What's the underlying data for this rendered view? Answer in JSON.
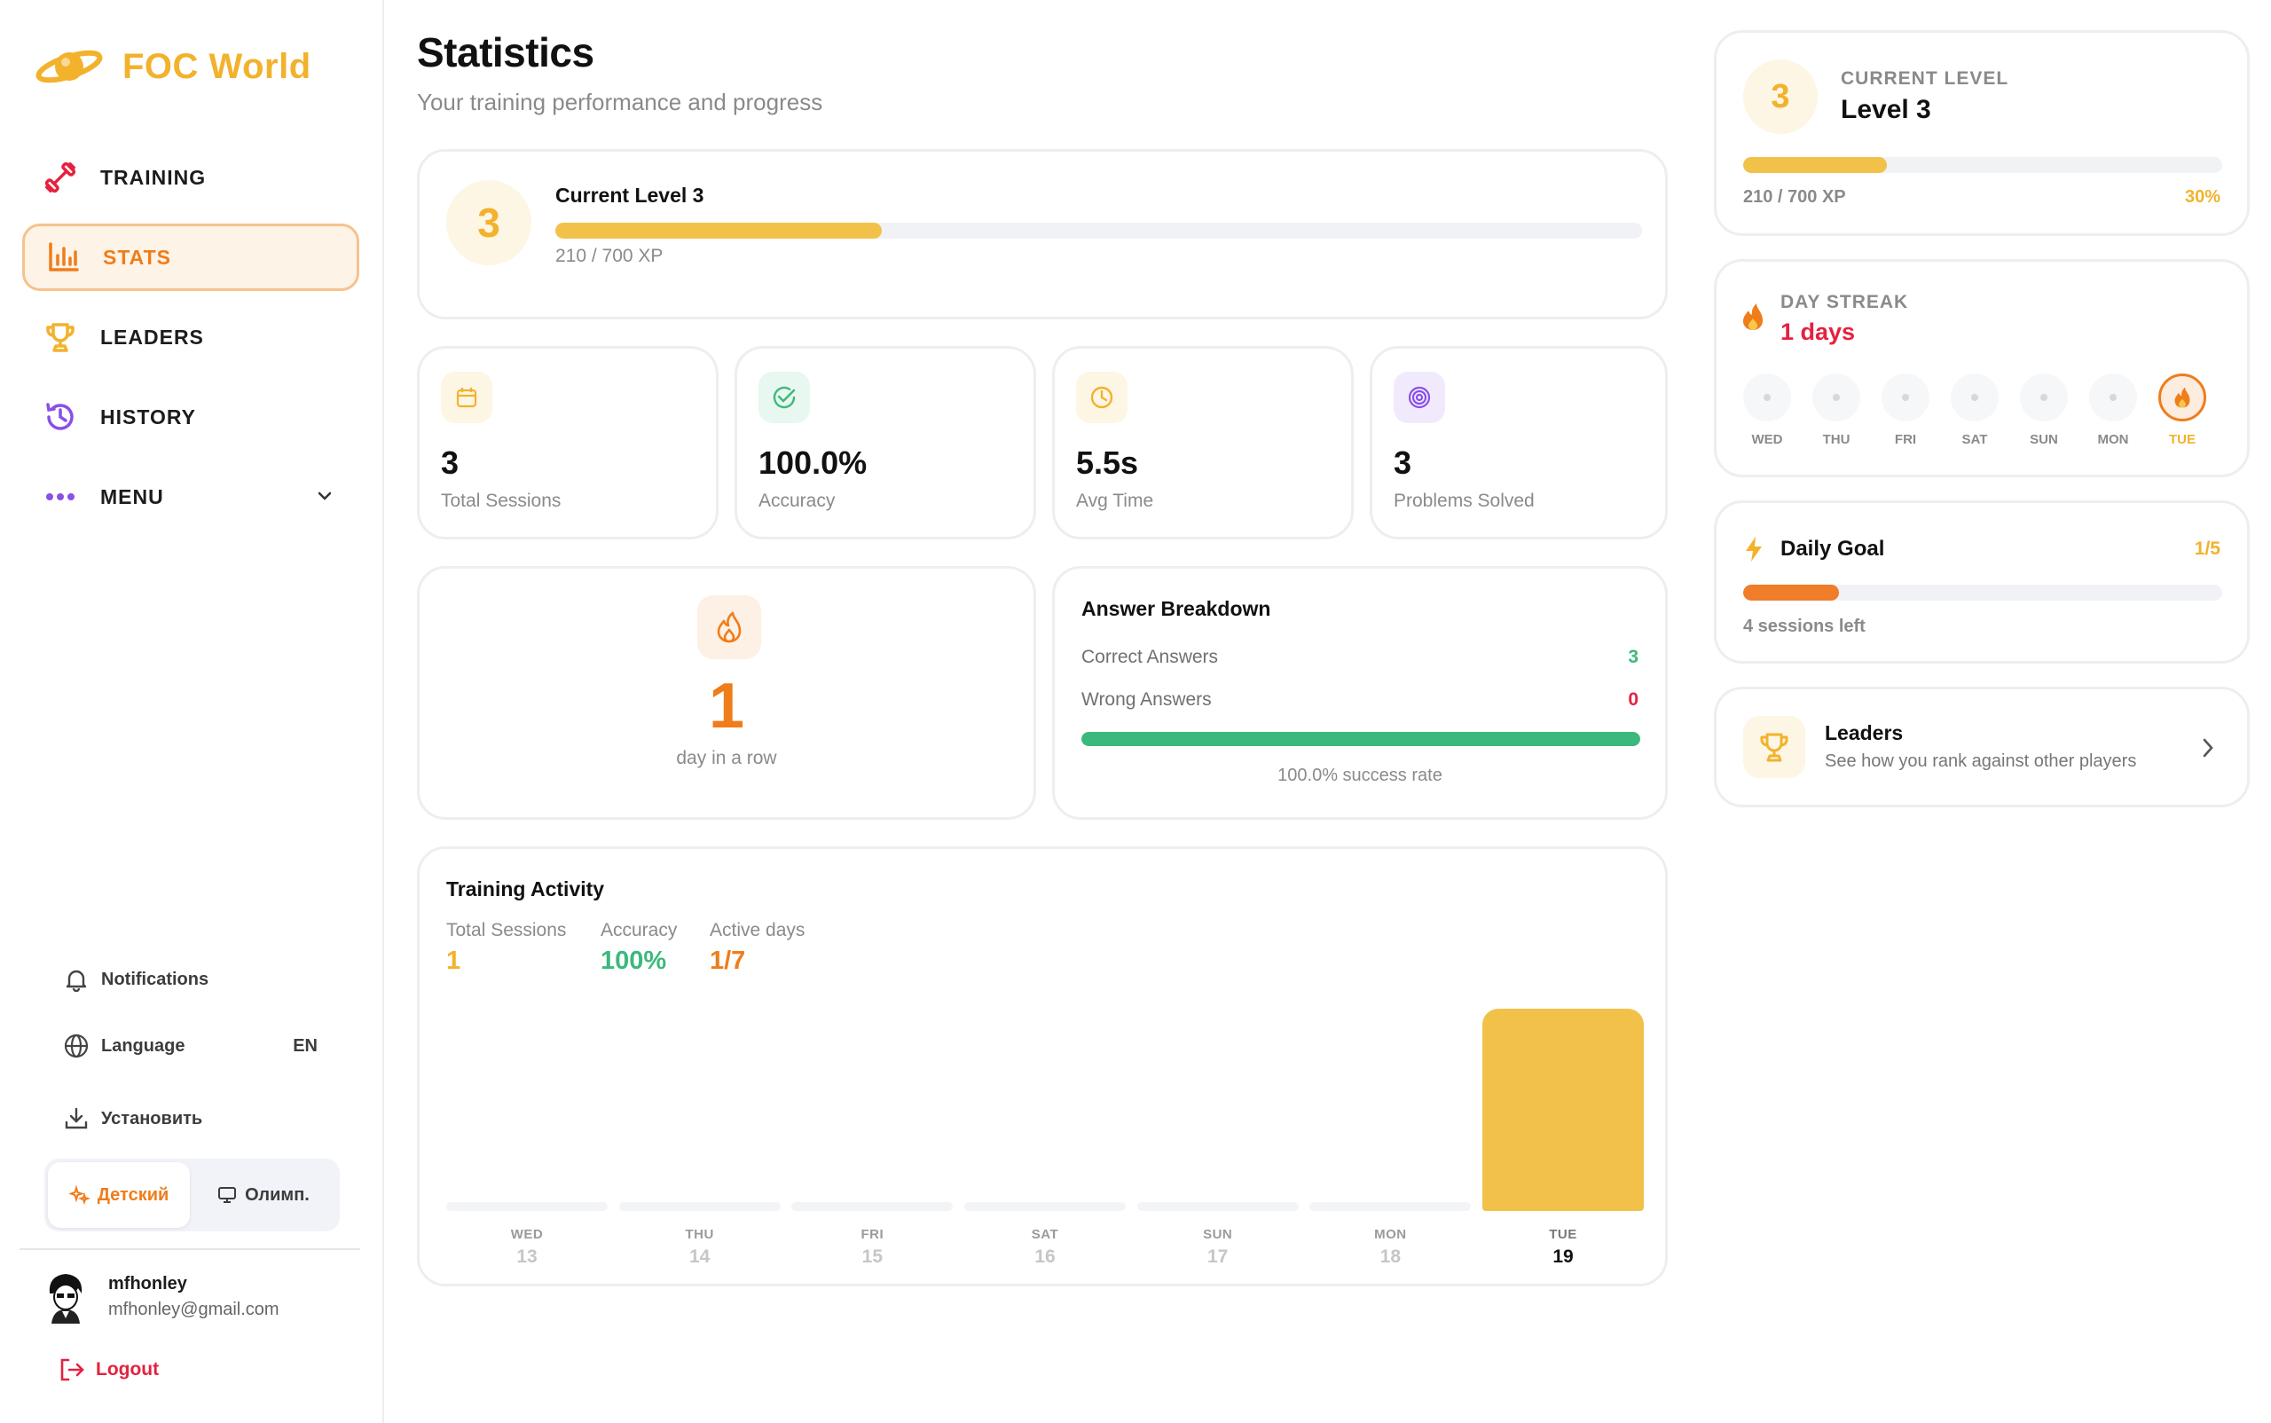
{
  "app": {
    "name": "FOC World"
  },
  "nav": {
    "training": "TRAINING",
    "stats": "STATS",
    "leaders": "LEADERS",
    "history": "HISTORY",
    "menu": "MENU"
  },
  "sidebar_utils": {
    "notifications": "Notifications",
    "language": "Language",
    "language_value": "EN",
    "install": "Установить"
  },
  "mode_switch": {
    "kids": "Детский",
    "olymp": "Олимп."
  },
  "user": {
    "name": "mfhonley",
    "email": "mfhonley@gmail.com"
  },
  "logout": "Logout",
  "page": {
    "title": "Statistics",
    "subtitle": "Your training performance and progress"
  },
  "level_card": {
    "level": "3",
    "title": "Current Level 3",
    "xp_text": "210 / 700 XP",
    "progress": 0.3
  },
  "stats": [
    {
      "value": "3",
      "label": "Total Sessions",
      "icon": "calendar-icon"
    },
    {
      "value": "100.0%",
      "label": "Accuracy",
      "icon": "check-circle-icon"
    },
    {
      "value": "5.5s",
      "label": "Avg Time",
      "icon": "clock-icon"
    },
    {
      "value": "3",
      "label": "Problems Solved",
      "icon": "target-icon"
    }
  ],
  "streak_card": {
    "value": "1",
    "label": "day in a row"
  },
  "breakdown": {
    "title": "Answer Breakdown",
    "correct_label": "Correct Answers",
    "correct_value": "3",
    "wrong_label": "Wrong Answers",
    "wrong_value": "0",
    "success_fraction": 1.0,
    "success_text": "100.0% success rate"
  },
  "activity": {
    "title": "Training Activity",
    "summary": [
      {
        "label": "Total Sessions",
        "value": "1",
        "color": "#f2b22c"
      },
      {
        "label": "Accuracy",
        "value": "100%",
        "color": "#3bb97c"
      },
      {
        "label": "Active days",
        "value": "1/7",
        "color": "#ef7d1a"
      }
    ]
  },
  "chart_data": {
    "type": "bar",
    "title": "Training Activity",
    "categories": [
      "WED",
      "THU",
      "FRI",
      "SAT",
      "SUN",
      "MON",
      "TUE"
    ],
    "dates": [
      "13",
      "14",
      "15",
      "16",
      "17",
      "18",
      "19"
    ],
    "values": [
      0,
      0,
      0,
      0,
      0,
      0,
      1
    ],
    "ylim": [
      0,
      1
    ],
    "highlight_index": 6,
    "bar_color": "#f2c14a",
    "track_color": "#f3f4f7",
    "grid": false,
    "legend": "none"
  },
  "right": {
    "current_level": {
      "caption": "CURRENT LEVEL",
      "level_badge": "3",
      "title": "Level 3",
      "xp_text": "210 / 700 XP",
      "percent_text": "30%",
      "progress": 0.3
    },
    "day_streak": {
      "caption": "DAY STREAK",
      "value": "1 days",
      "days": [
        "WED",
        "THU",
        "FRI",
        "SAT",
        "SUN",
        "MON",
        "TUE"
      ],
      "active": [
        false,
        false,
        false,
        false,
        false,
        false,
        true
      ]
    },
    "daily_goal": {
      "title": "Daily Goal",
      "count": "1/5",
      "remaining": "4 sessions left",
      "progress": 0.2
    },
    "leaders": {
      "title": "Leaders",
      "subtitle": "See how you rank against other players"
    }
  },
  "colors": {
    "accent": "#f2b22c",
    "orange": "#ef7d1a",
    "green": "#3bb97c",
    "red": "#e5213f",
    "purple": "#8a4fe8"
  }
}
